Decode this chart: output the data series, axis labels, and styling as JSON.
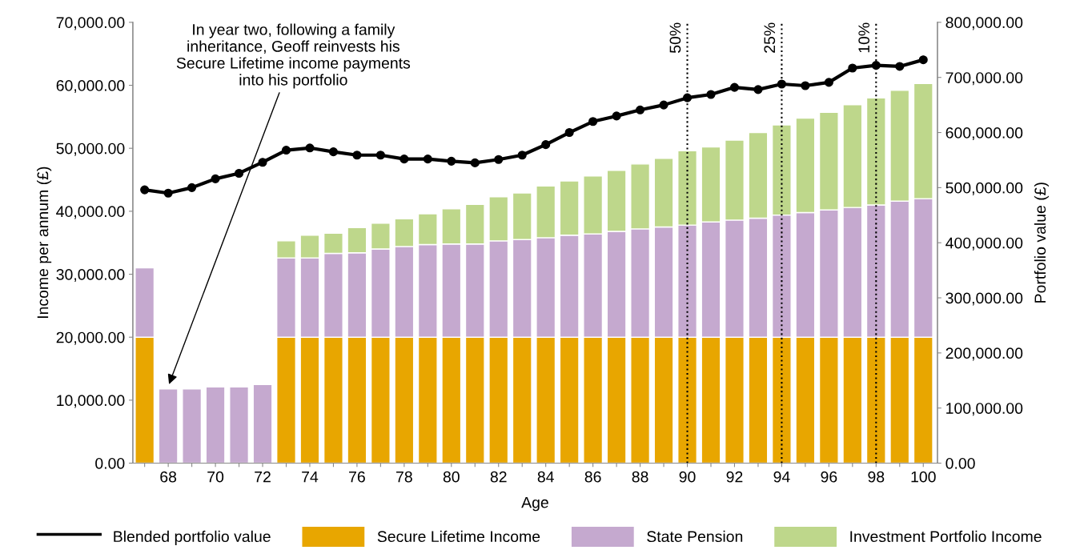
{
  "chart_data": {
    "type": "bar",
    "stacked": true,
    "xlabel": "Age",
    "ylabel": "Income per annum (£)",
    "y2label": "Portfolio value (£)",
    "x": [
      67,
      68,
      69,
      70,
      71,
      72,
      73,
      74,
      75,
      76,
      77,
      78,
      79,
      80,
      81,
      82,
      83,
      84,
      85,
      86,
      87,
      88,
      89,
      90,
      91,
      92,
      93,
      94,
      95,
      96,
      97,
      98,
      99,
      100
    ],
    "xlim": [
      66.5,
      100.6
    ],
    "xticks": [
      {
        "value": 67,
        "label": null
      },
      68,
      {
        "value": 69,
        "label": null
      },
      70,
      {
        "value": 71,
        "label": null
      },
      72,
      {
        "value": 73,
        "label": null
      },
      74,
      {
        "value": 75,
        "label": null
      },
      76,
      {
        "value": 77,
        "label": null
      },
      78,
      {
        "value": 79,
        "label": null
      },
      80,
      {
        "value": 81,
        "label": null
      },
      82,
      {
        "value": 83,
        "label": null
      },
      84,
      {
        "value": 85,
        "label": null
      },
      86,
      {
        "value": 87,
        "label": null
      },
      88,
      {
        "value": 89,
        "label": null
      },
      90,
      {
        "value": 91,
        "label": null
      },
      92,
      {
        "value": 93,
        "label": null
      },
      94,
      {
        "value": 95,
        "label": null
      },
      96,
      {
        "value": 97,
        "label": null
      },
      98,
      {
        "value": 99,
        "label": null
      },
      100
    ],
    "ylim": [
      0,
      70000
    ],
    "yticks": [
      {
        "value": 0,
        "label": "0.00"
      },
      {
        "value": 10000,
        "label": "10,000.00"
      },
      {
        "value": 20000,
        "label": "20,000.00"
      },
      {
        "value": 30000,
        "label": "30,000.00"
      },
      {
        "value": 40000,
        "label": "40,000.00"
      },
      {
        "value": 50000,
        "label": "50,000.00"
      },
      {
        "value": 60000,
        "label": "60,000.00"
      },
      {
        "value": 70000,
        "label": "70,000.00"
      }
    ],
    "y2lim": [
      0,
      800000
    ],
    "y2ticks": [
      {
        "value": 0,
        "label": "0.00"
      },
      {
        "value": 100000,
        "label": "100,000.00"
      },
      {
        "value": 200000,
        "label": "200,000.00"
      },
      {
        "value": 300000,
        "label": "300,000.00"
      },
      {
        "value": 400000,
        "label": "400,000.00"
      },
      {
        "value": 500000,
        "label": "500,000.00"
      },
      {
        "value": 600000,
        "label": "600,000.00"
      },
      {
        "value": 700000,
        "label": "700,000.00"
      },
      {
        "value": 800000,
        "label": "800,000.00"
      }
    ],
    "series": [
      {
        "name": "Blended portfolio value",
        "type": "line",
        "axis": "y2",
        "color": "#000000",
        "marker": "circle",
        "line_style": "solid",
        "values": [
          496000,
          490000,
          500000,
          516000,
          526000,
          546000,
          568000,
          572000,
          565000,
          559000,
          559000,
          552000,
          552000,
          548000,
          545000,
          551000,
          559000,
          578000,
          600000,
          620000,
          630000,
          641000,
          650000,
          663000,
          669000,
          682000,
          678000,
          688000,
          685000,
          691000,
          717000,
          722000,
          720000,
          732000
        ]
      },
      {
        "name": "Secure Lifetime Income",
        "color": "#e8a600",
        "values": [
          20000,
          null,
          null,
          null,
          null,
          null,
          20000,
          20000,
          20000,
          20000,
          20000,
          20000,
          20000,
          20000,
          20000,
          20000,
          20000,
          20000,
          20000,
          20000,
          20000,
          20000,
          20000,
          20000,
          20000,
          20000,
          20000,
          20000,
          20000,
          20000,
          20000,
          20000,
          20000,
          20000
        ]
      },
      {
        "name": "State Pension",
        "color": "#c5a9cf",
        "values": [
          11000,
          11800,
          11800,
          12100,
          12100,
          12500,
          12600,
          12600,
          13300,
          13400,
          14000,
          14400,
          14700,
          14800,
          14800,
          15300,
          15500,
          15800,
          16200,
          16400,
          16800,
          17200,
          17500,
          17800,
          18300,
          18600,
          18900,
          19400,
          19800,
          20200,
          20600,
          21000,
          21600,
          22000
        ]
      },
      {
        "name": "Investment Portfolio Income",
        "color": "#bed78b",
        "values": [
          null,
          null,
          null,
          null,
          null,
          null,
          2700,
          3600,
          3200,
          4000,
          4100,
          4400,
          4900,
          5600,
          6300,
          7000,
          7400,
          8200,
          8600,
          9200,
          9700,
          10300,
          10900,
          11800,
          11900,
          12700,
          13600,
          14300,
          15000,
          15500,
          16300,
          17000,
          17600,
          18300
        ]
      }
    ],
    "ref_lines": [
      {
        "axis": "x",
        "value": 90,
        "line_style": "dotted",
        "color": "#000000"
      },
      {
        "axis": "x",
        "value": 94,
        "line_style": "dotted",
        "color": "#000000"
      },
      {
        "axis": "x",
        "value": 98,
        "line_style": "dotted",
        "color": "#000000"
      }
    ],
    "annotations": [
      {
        "text": "In year two, following a family\ninheritance, Geoff reinvests his\nSecure Lifetime income payments\ninto his portfolio",
        "x": 68,
        "y": 11900
      },
      {
        "text": "50%",
        "x": 90,
        "y": 70000
      },
      {
        "text": "25%",
        "x": 94,
        "y": 70000
      },
      {
        "text": "10%",
        "x": 98,
        "y": 70000
      }
    ],
    "legend": "bottom",
    "grid": false
  }
}
